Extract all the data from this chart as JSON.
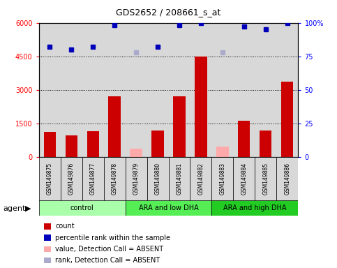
{
  "title": "GDS2652 / 208661_s_at",
  "samples": [
    "GSM149875",
    "GSM149876",
    "GSM149877",
    "GSM149878",
    "GSM149879",
    "GSM149880",
    "GSM149881",
    "GSM149882",
    "GSM149883",
    "GSM149884",
    "GSM149885",
    "GSM149886"
  ],
  "counts": [
    1100,
    950,
    1150,
    2700,
    null,
    1180,
    2700,
    4500,
    null,
    1600,
    1180,
    3350
  ],
  "absent_values": [
    null,
    null,
    null,
    null,
    350,
    null,
    null,
    null,
    450,
    null,
    null,
    null
  ],
  "percentile_ranks": [
    82,
    80,
    82,
    98,
    null,
    82,
    98,
    100,
    null,
    97,
    95,
    100
  ],
  "absent_ranks": [
    null,
    null,
    null,
    null,
    78,
    null,
    null,
    null,
    78,
    null,
    null,
    null
  ],
  "groups": [
    {
      "label": "control",
      "start": 0,
      "end": 4,
      "color": "#aaffaa"
    },
    {
      "label": "ARA and low DHA",
      "start": 4,
      "end": 8,
      "color": "#55ee55"
    },
    {
      "label": "ARA and high DHA",
      "start": 8,
      "end": 12,
      "color": "#22cc22"
    }
  ],
  "ylim_left": [
    0,
    6000
  ],
  "ylim_right": [
    0,
    100
  ],
  "yticks_left": [
    0,
    1500,
    3000,
    4500,
    6000
  ],
  "ytick_labels_left": [
    "0",
    "1500",
    "3000",
    "4500",
    "6000"
  ],
  "yticks_right": [
    0,
    25,
    50,
    75,
    100
  ],
  "ytick_labels_right": [
    "0",
    "25",
    "50",
    "75",
    "100%"
  ],
  "bar_color_present": "#cc0000",
  "bar_color_absent": "#ffaaaa",
  "dot_color_present": "#0000bb",
  "dot_color_absent": "#aaaacc",
  "bar_width": 0.55,
  "background_plot": "#d8d8d8",
  "background_fig": "#ffffff",
  "agent_label": "agent",
  "legend_items": [
    {
      "label": "count",
      "color": "#cc0000"
    },
    {
      "label": "percentile rank within the sample",
      "color": "#0000bb"
    },
    {
      "label": "value, Detection Call = ABSENT",
      "color": "#ffaaaa"
    },
    {
      "label": "rank, Detection Call = ABSENT",
      "color": "#aaaacc"
    }
  ]
}
